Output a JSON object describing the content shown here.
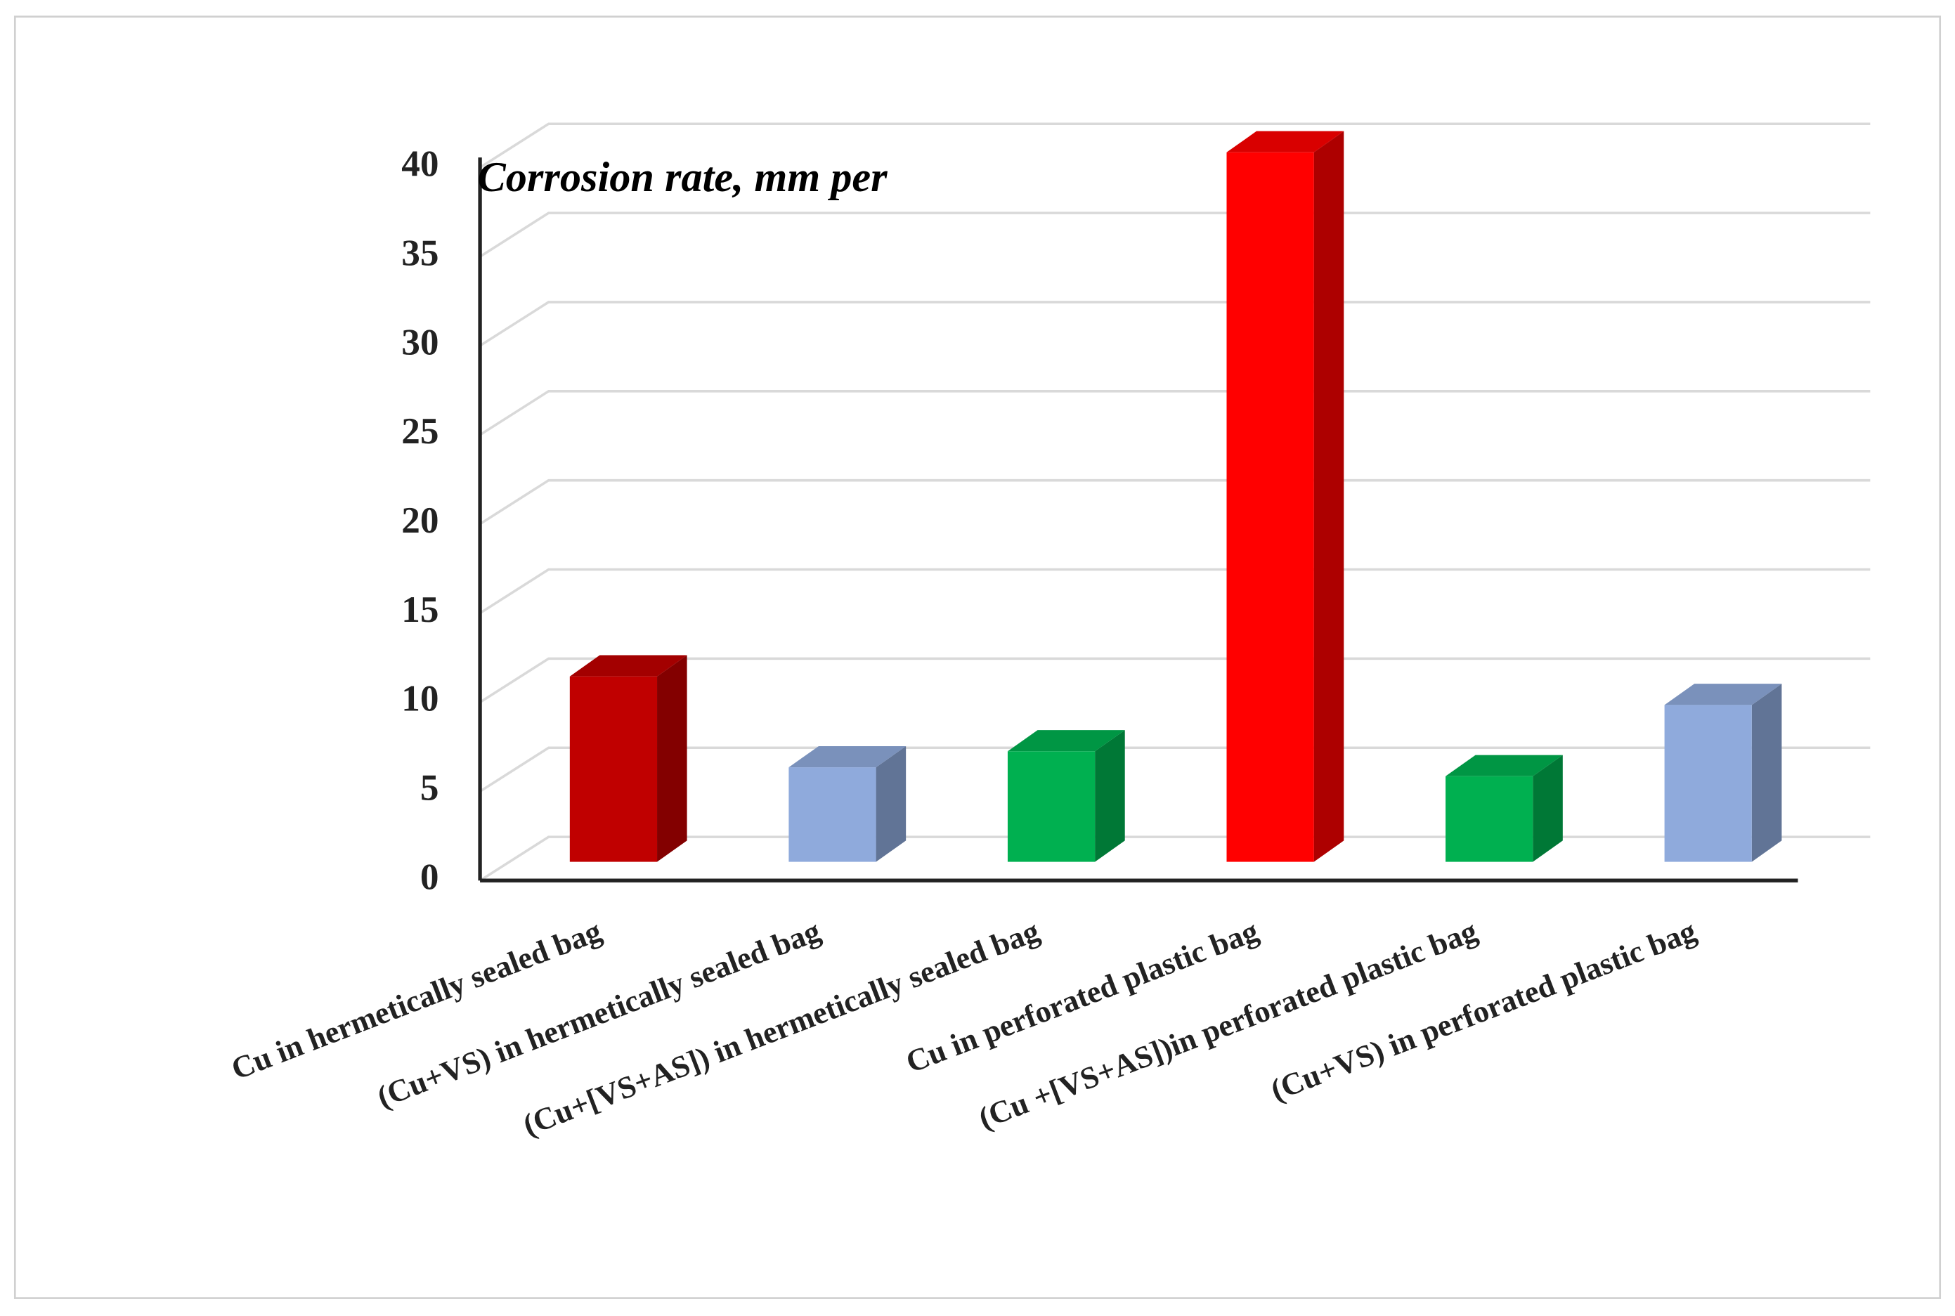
{
  "chart_data": {
    "type": "bar3d",
    "title": "Corrosion rate, mm per",
    "categories": [
      "Cu in hermetically sealed bag",
      "(Cu+VS) in hermetically sealed bag",
      "(Cu+[VS+AS]) in hermetically sealed bag",
      "Cu in perforated plastic bag",
      "(Cu +[VS+AS])in perforated plastic bag",
      "(Cu+VS) in perforated plastic bag"
    ],
    "values": [
      10.4,
      5.3,
      6.2,
      39.8,
      4.8,
      8.8
    ],
    "colors": [
      "#c00000",
      "#8faadc",
      "#00b050",
      "#ff0000",
      "#00b050",
      "#8faadc"
    ],
    "ylim": [
      0,
      40
    ],
    "yticks": [
      0,
      5,
      10,
      15,
      20,
      25,
      30,
      35,
      40
    ],
    "grid": true
  }
}
